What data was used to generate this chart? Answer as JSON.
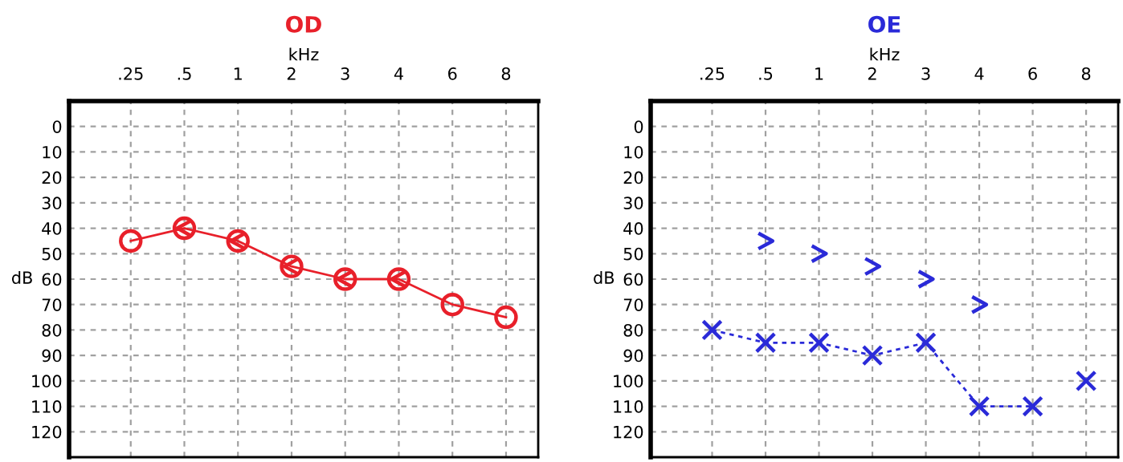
{
  "chart_data": [
    {
      "type": "line",
      "title": "OD",
      "xlabel": "kHz",
      "ylabel": "dB",
      "categories": [
        ".25",
        ".5",
        "1",
        "2",
        "3",
        "4",
        "6",
        "8"
      ],
      "ylim": [
        130,
        -10
      ],
      "yticks": [
        0,
        10,
        20,
        30,
        40,
        50,
        60,
        70,
        80,
        90,
        100,
        110,
        120
      ],
      "grid": true,
      "legend": false,
      "series": [
        {
          "color": "#e8202a",
          "marker": "circle",
          "line_style": "solid",
          "values": [
            45,
            40,
            45,
            55,
            60,
            60,
            70,
            75
          ]
        },
        {
          "type": "scatter",
          "color": "#e8202a",
          "values": [
            null,
            40,
            45,
            55,
            60,
            60,
            null,
            null
          ]
        }
      ]
    },
    {
      "type": "line",
      "title": "OE",
      "xlabel": "kHz",
      "ylabel": "dB",
      "categories": [
        ".25",
        ".5",
        "1",
        "2",
        "3",
        "4",
        "6",
        "8"
      ],
      "ylim": [
        130,
        -10
      ],
      "yticks": [
        0,
        10,
        20,
        30,
        40,
        50,
        60,
        70,
        80,
        90,
        100,
        110,
        120
      ],
      "grid": true,
      "legend": false,
      "series": [
        {
          "color": "#2a2ad8",
          "marker": "cross",
          "line_style": "dashed",
          "values": [
            80,
            85,
            85,
            90,
            85,
            110,
            110,
            null
          ]
        },
        {
          "type": "scatter",
          "color": "#2a2ad8",
          "marker": "cross",
          "values": [
            null,
            null,
            null,
            null,
            null,
            null,
            null,
            100
          ]
        },
        {
          "type": "scatter",
          "color": "#2a2ad8",
          "values": [
            null,
            45,
            50,
            55,
            60,
            70,
            null,
            null
          ]
        }
      ]
    }
  ]
}
